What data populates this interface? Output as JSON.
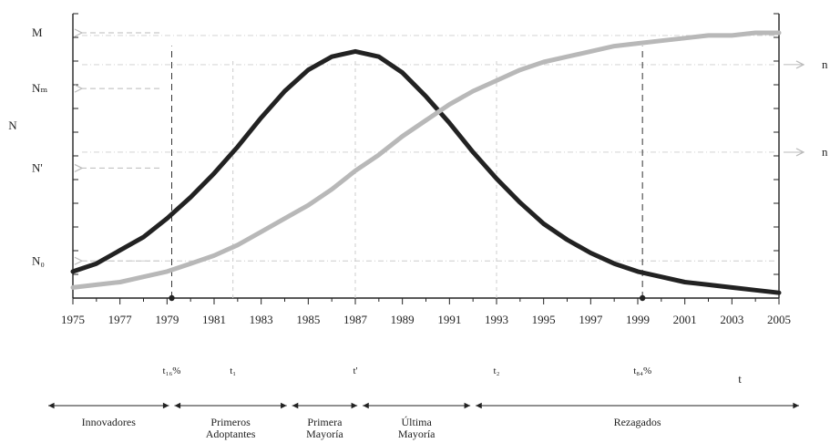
{
  "chart_data": {
    "type": "line",
    "title": "",
    "xlabel": "t",
    "ylabel": "N",
    "xlim": [
      1975,
      2005
    ],
    "x_ticks": [
      "1975",
      "1977",
      "1979",
      "1981",
      "1983",
      "1985",
      "1987",
      "1989",
      "1991",
      "1993",
      "1995",
      "1997",
      "1999",
      "2001",
      "2003",
      "2005"
    ],
    "left_axis_labels": [
      {
        "text": "M",
        "value": 1.0
      },
      {
        "text": "Nₘ",
        "value": 0.79
      },
      {
        "text": "N'",
        "value": 0.49
      },
      {
        "text": "N₀",
        "value": 0.14
      }
    ],
    "right_axis_labels": [
      {
        "text": "n",
        "value": 0.88
      },
      {
        "text": "n",
        "value": 0.55
      }
    ],
    "series": [
      {
        "color": "#222222",
        "x": [
          1975,
          1976,
          1977,
          1978,
          1979,
          1980,
          1981,
          1982,
          1983,
          1984,
          1985,
          1986,
          1987,
          1988,
          1989,
          1990,
          1991,
          1992,
          1993,
          1994,
          1995,
          1996,
          1997,
          1998,
          1999,
          2000,
          2001,
          2002,
          2003,
          2004,
          2005
        ],
        "y": [
          0.1,
          0.13,
          0.18,
          0.23,
          0.3,
          0.38,
          0.47,
          0.57,
          0.68,
          0.78,
          0.86,
          0.91,
          0.93,
          0.91,
          0.85,
          0.76,
          0.66,
          0.55,
          0.45,
          0.36,
          0.28,
          0.22,
          0.17,
          0.13,
          0.1,
          0.08,
          0.06,
          0.05,
          0.04,
          0.03,
          0.02
        ]
      },
      {
        "color": "#b8b8b8",
        "x": [
          1975,
          1976,
          1977,
          1978,
          1979,
          1980,
          1981,
          1982,
          1983,
          1984,
          1985,
          1986,
          1987,
          1988,
          1989,
          1990,
          1991,
          1992,
          1993,
          1994,
          1995,
          1996,
          1997,
          1998,
          1999,
          2000,
          2001,
          2002,
          2003,
          2004,
          2005
        ],
        "y": [
          0.04,
          0.05,
          0.06,
          0.08,
          0.1,
          0.13,
          0.16,
          0.2,
          0.25,
          0.3,
          0.35,
          0.41,
          0.48,
          0.54,
          0.61,
          0.67,
          0.73,
          0.78,
          0.82,
          0.86,
          0.89,
          0.91,
          0.93,
          0.95,
          0.96,
          0.97,
          0.98,
          0.99,
          0.99,
          1.0,
          1.0
        ]
      }
    ],
    "markers": [
      {
        "label": "t₁₆%",
        "x": 1979.2
      },
      {
        "label": "t₁",
        "x": 1981.8
      },
      {
        "label": "t'",
        "x": 1987
      },
      {
        "label": "t₂",
        "x": 1993
      },
      {
        "label": "t₈₄%",
        "x": 1999.2
      }
    ],
    "segments": [
      {
        "label": "Innovadores",
        "from": 1975,
        "to": 1979.2
      },
      {
        "label": "Primeros\nAdoptantes",
        "from": 1979.2,
        "to": 1984.2
      },
      {
        "label": "Primera\nMayoría",
        "from": 1984.2,
        "to": 1987.2
      },
      {
        "label": "Última\nMayoría",
        "from": 1987.2,
        "to": 1992
      },
      {
        "label": "Rezagados",
        "from": 1992,
        "to": 2005
      }
    ],
    "grid": false,
    "legend": "none"
  }
}
